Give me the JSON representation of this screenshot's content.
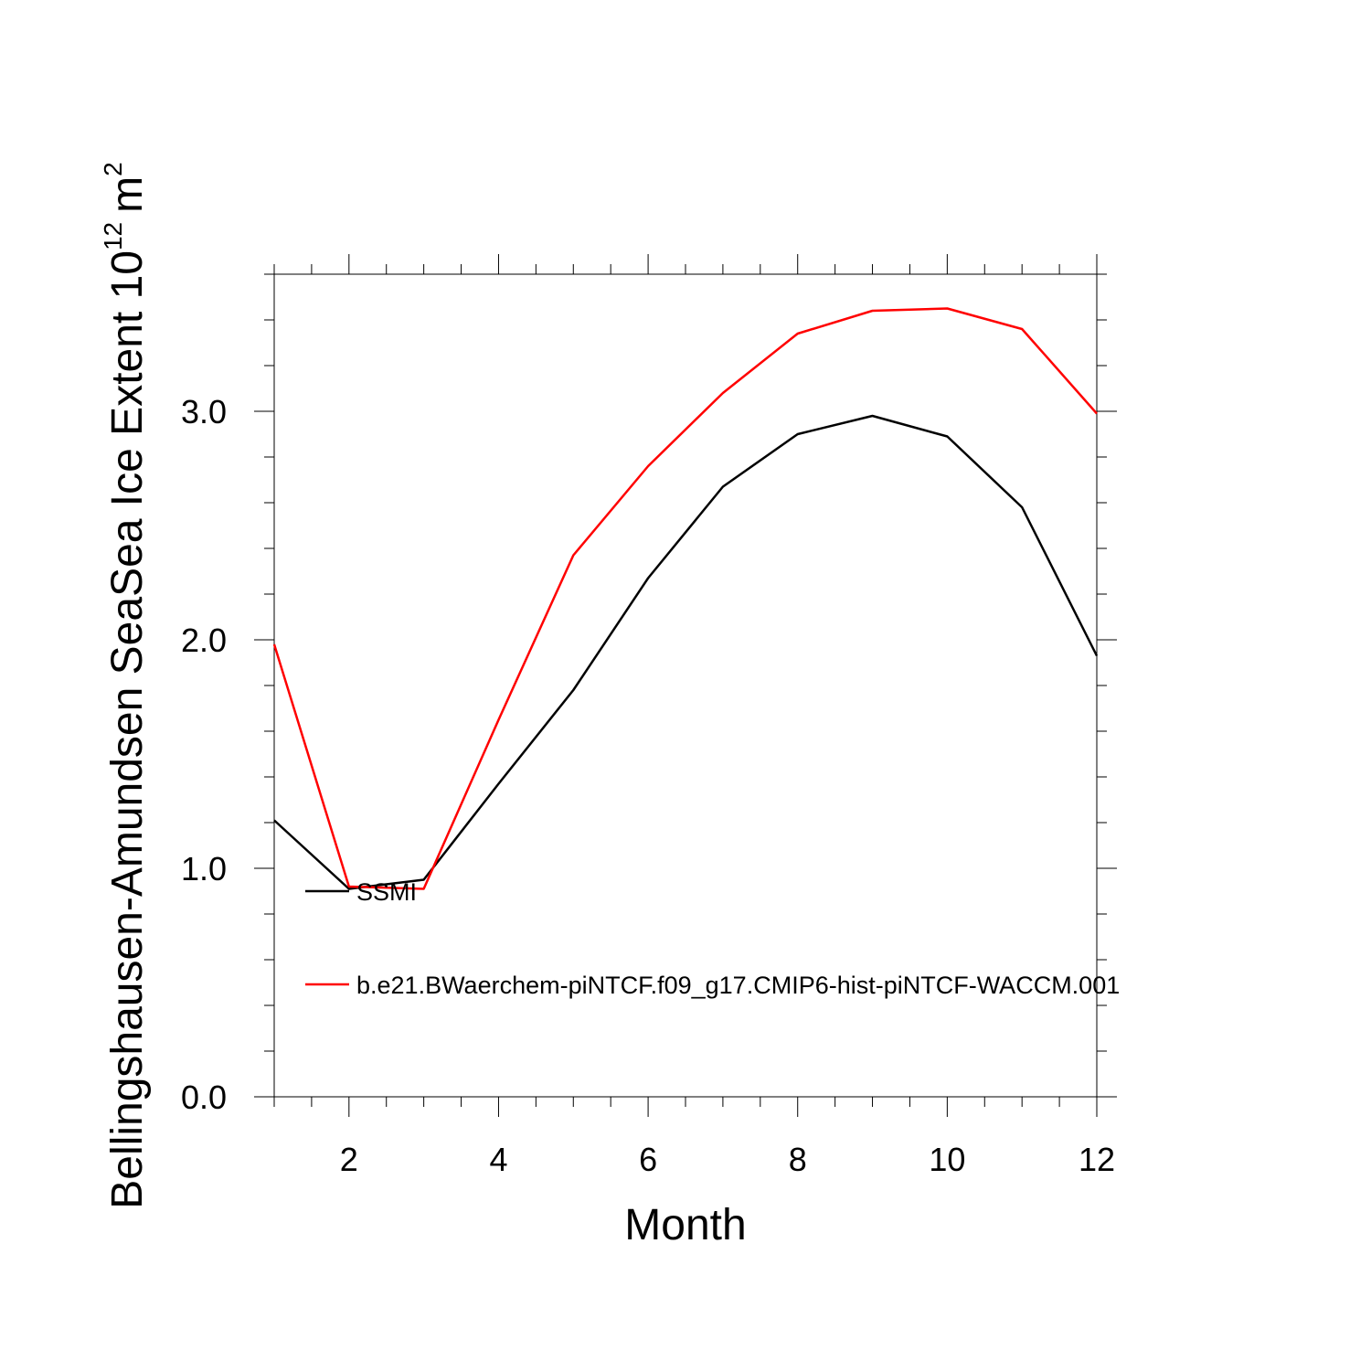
{
  "chart_data": {
    "type": "line",
    "title": "",
    "xlabel": "Month",
    "ylabel_prefix": "Bellingshausen-Amundsen SeaSea Ice Extent 10",
    "ylabel_exponent": "12",
    "ylabel_unit": "m",
    "ylabel_unit_exponent": "2",
    "xlim": [
      1,
      12
    ],
    "ylim": [
      0,
      3.6
    ],
    "x_major_ticks": [
      2,
      4,
      6,
      8,
      10,
      12
    ],
    "x_tick_labels": [
      "2",
      "4",
      "6",
      "8",
      "10",
      "12"
    ],
    "y_major_ticks": [
      0,
      1,
      2,
      3
    ],
    "y_tick_labels": [
      "0.0",
      "1.0",
      "2.0",
      "3.0"
    ],
    "grid": false,
    "legend_position": "lower-left",
    "x": [
      1,
      2,
      3,
      4,
      5,
      6,
      7,
      8,
      9,
      10,
      11,
      12
    ],
    "series": [
      {
        "name": "SSMI",
        "color": "#000000",
        "values": [
          1.21,
          0.91,
          0.95,
          1.37,
          1.78,
          2.27,
          2.67,
          2.9,
          2.98,
          2.89,
          2.58,
          1.93
        ]
      },
      {
        "name": "b.e21.BWaerchem-piNTCF.f09_g17.CMIP6-hist-piNTCF-WACCM.001",
        "color": "#ff0000",
        "values": [
          1.98,
          0.92,
          0.91,
          1.65,
          2.37,
          2.76,
          3.08,
          3.34,
          3.44,
          3.45,
          3.36,
          2.99
        ]
      }
    ]
  }
}
